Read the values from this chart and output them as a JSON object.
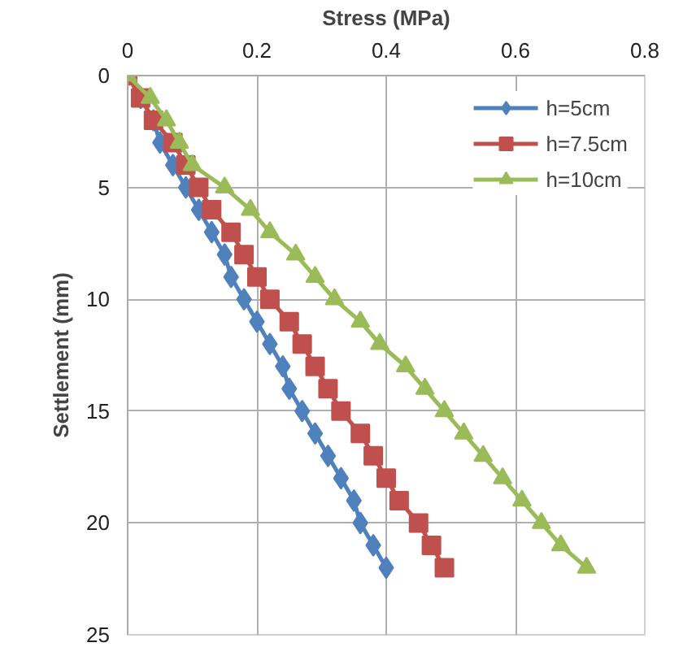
{
  "chart_data": {
    "type": "line",
    "xlabel": "Stress (MPa)",
    "ylabel": "Settlement (mm)",
    "xlim": [
      0,
      0.8
    ],
    "xticks": [
      0,
      0.2,
      0.4,
      0.6,
      0.8
    ],
    "ylim": [
      25,
      0
    ],
    "yticks": [
      0,
      5,
      10,
      15,
      20,
      25
    ],
    "grid": true,
    "legend": "top right",
    "series": [
      {
        "name": "h=5cm",
        "color": "#4f81bd",
        "marker": "diamond",
        "x": [
          0,
          0.02,
          0.04,
          0.05,
          0.07,
          0.09,
          0.11,
          0.13,
          0.15,
          0.16,
          0.18,
          0.2,
          0.22,
          0.24,
          0.25,
          0.27,
          0.29,
          0.31,
          0.33,
          0.35,
          0.36,
          0.38,
          0.4
        ],
        "values": [
          0,
          1,
          2,
          3,
          4,
          5,
          6,
          7,
          8,
          9,
          10,
          11,
          12,
          13,
          14,
          15,
          16,
          17,
          18,
          19,
          20,
          21,
          22
        ]
      },
      {
        "name": "h=7.5cm",
        "color": "#c0504d",
        "marker": "square",
        "x": [
          0,
          0.02,
          0.04,
          0.07,
          0.09,
          0.11,
          0.13,
          0.16,
          0.18,
          0.2,
          0.22,
          0.25,
          0.27,
          0.29,
          0.31,
          0.33,
          0.36,
          0.38,
          0.4,
          0.42,
          0.45,
          0.47,
          0.49
        ],
        "values": [
          0,
          1,
          2,
          3,
          4,
          5,
          6,
          7,
          8,
          9,
          10,
          11,
          12,
          13,
          14,
          15,
          16,
          17,
          18,
          19,
          20,
          21,
          22
        ]
      },
      {
        "name": "h=10cm",
        "color": "#9bbb59",
        "marker": "triangle",
        "x": [
          0,
          0.035,
          0.06,
          0.08,
          0.1,
          0.15,
          0.19,
          0.22,
          0.26,
          0.29,
          0.32,
          0.36,
          0.39,
          0.43,
          0.46,
          0.49,
          0.52,
          0.55,
          0.58,
          0.61,
          0.64,
          0.67,
          0.71
        ],
        "values": [
          0,
          1,
          2,
          3,
          4,
          5,
          6,
          7,
          8,
          9,
          10,
          11,
          12,
          13,
          14,
          15,
          16,
          17,
          18,
          19,
          20,
          21,
          22
        ]
      }
    ]
  }
}
